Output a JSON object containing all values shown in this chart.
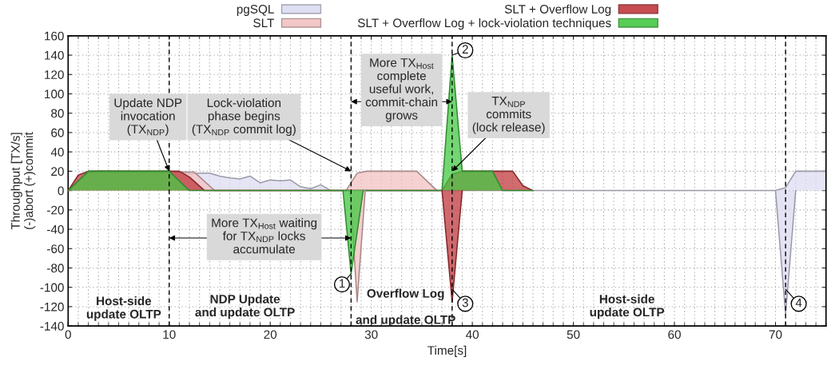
{
  "chart_data": {
    "type": "area",
    "xlabel": "Time[s]",
    "ylabel": "Throughput [TX/s]\n(-)abort (+)commit",
    "xlim": [
      0,
      75
    ],
    "xticks": [
      0,
      10,
      20,
      30,
      40,
      50,
      60,
      70
    ],
    "ylim": [
      -140,
      160
    ],
    "yticks": [
      -140,
      -120,
      -100,
      -80,
      -60,
      -40,
      -20,
      0,
      20,
      40,
      60,
      80,
      100,
      120,
      140,
      160
    ],
    "grid": true,
    "legend": "top",
    "series": [
      {
        "name": "pgSQL",
        "color": "#dcdcf2",
        "x": [
          10.5,
          11,
          12,
          13,
          14,
          15,
          16,
          17,
          18,
          19,
          20,
          21,
          22,
          23,
          24,
          25,
          26,
          27,
          70,
          71,
          72,
          75
        ],
        "values": [
          19,
          19,
          17,
          18,
          18,
          15,
          13,
          12,
          15,
          8,
          11,
          10,
          11,
          4,
          2,
          6,
          0,
          0,
          0,
          3,
          20,
          20
        ]
      },
      {
        "color": "#dadaf0",
        "x": [
          70,
          71,
          72
        ],
        "values": [
          0,
          -128,
          0
        ]
      },
      {
        "name": "SLT",
        "color": "#f2c2c2",
        "x": [
          0,
          1,
          2,
          3,
          12.5,
          14.5,
          27.5,
          28.6,
          29.5,
          34.5,
          36.5
        ],
        "values": [
          0,
          10,
          18,
          20,
          19,
          0,
          0,
          18,
          20,
          20,
          0
        ]
      },
      {
        "color": "#f0c0c0",
        "x": [
          27.9,
          28.6,
          29.4
        ],
        "values": [
          0,
          -115,
          0
        ]
      },
      {
        "name": "SLT + Overflow Log",
        "color": "#c0393e",
        "x": [
          0,
          1,
          2,
          11,
          12,
          13.5,
          37,
          38,
          39,
          44,
          45,
          46
        ],
        "values": [
          0,
          16,
          20,
          20,
          14,
          0,
          0,
          17,
          20,
          20,
          5,
          0
        ]
      },
      {
        "color": "#be373c",
        "x": [
          37,
          38,
          39
        ],
        "values": [
          0,
          -115,
          0
        ]
      },
      {
        "name": "SLT + Overflow Log + lock-violation techniques",
        "color": "#44c844",
        "x": [
          0,
          2,
          10,
          12,
          37,
          38,
          39,
          42,
          43,
          46
        ],
        "values": [
          0,
          20,
          20,
          0,
          0,
          140,
          20,
          20,
          0,
          0
        ]
      },
      {
        "color": "#42c642",
        "x": [
          27.2,
          28,
          29.2
        ],
        "values": [
          0,
          -86,
          0
        ]
      }
    ],
    "ref_lines": [
      {
        "axis": "x",
        "value": 10,
        "color": "#000000",
        "line_style": "dashed"
      },
      {
        "axis": "x",
        "value": 28,
        "color": "#000000",
        "line_style": "dashed"
      },
      {
        "axis": "x",
        "value": 38,
        "color": "#000000",
        "line_style": "dashed"
      },
      {
        "axis": "x",
        "value": 71,
        "color": "#000000",
        "line_style": "dashed"
      }
    ],
    "annotations": [
      {
        "text": "Update NDP\ninvocation\n(TX$_{NDP}$)",
        "x": 10,
        "y": 20
      },
      {
        "text": "Lock-violation\nphase begins\n(TX$_{NDP}$ commit log)",
        "x": 28,
        "y": 20
      },
      {
        "text": "More TX$_{Host}$\ncomplete\nuseful work,\ncommit-chain\ngrows",
        "x": 38,
        "y": 92
      },
      {
        "text": "TX$_{NDP}$\ncommits\n(lock release)",
        "x": 38,
        "y": 20
      },
      "More TX$_{Host}$ waiting\nfor TX$_{NDP}$ locks\naccumulate",
      {
        "text": "1",
        "x": 28,
        "y": -86
      },
      {
        "text": "2",
        "x": 38,
        "y": 140
      },
      {
        "text": "3",
        "x": 38,
        "y": -102
      },
      {
        "text": "4",
        "x": 71,
        "y": -102
      },
      "Host-side\nupdate OLTP",
      "NDP Update\nand update OLTP",
      "Overflow Log\n\nand update OLTP",
      "Host-side\nupdate OLTP"
    ]
  }
}
